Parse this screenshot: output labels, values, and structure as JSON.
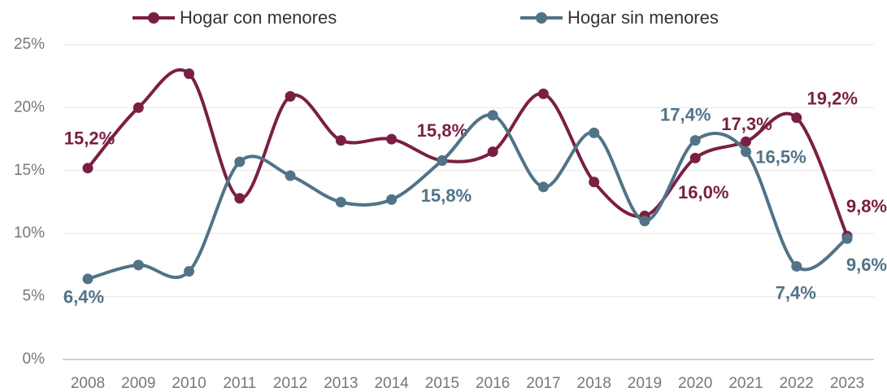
{
  "chart_data": {
    "type": "line",
    "categories": [
      "2008",
      "2009",
      "2010",
      "2011",
      "2012",
      "2013",
      "2014",
      "2015",
      "2016",
      "2017",
      "2018",
      "2019",
      "2020",
      "2021",
      "2022",
      "2023"
    ],
    "series": [
      {
        "name": "Hogar con menores",
        "color": "#7a1f44",
        "values": [
          15.2,
          20.0,
          22.7,
          12.8,
          20.9,
          17.4,
          17.5,
          15.8,
          16.5,
          21.1,
          14.1,
          11.4,
          16.0,
          17.3,
          19.2,
          9.8
        ],
        "value_labels": [
          "15,2%",
          null,
          null,
          null,
          null,
          null,
          null,
          "15,8%",
          null,
          null,
          null,
          null,
          "16,0%",
          "17,3%",
          "19,2%",
          "9,8%"
        ]
      },
      {
        "name": "Hogar sin menores",
        "color": "#517387",
        "values": [
          6.4,
          7.5,
          7.0,
          15.7,
          14.6,
          12.5,
          12.7,
          15.8,
          19.4,
          13.7,
          18.0,
          11.0,
          17.4,
          16.5,
          7.4,
          9.6
        ],
        "value_labels": [
          "6,4%",
          null,
          null,
          null,
          null,
          null,
          null,
          "15,8%",
          null,
          null,
          null,
          null,
          "17,4%",
          "16,5%",
          "7,4%",
          "9,6%"
        ]
      }
    ],
    "ylim": [
      0,
      25
    ],
    "yticks": [
      {
        "value": 0,
        "label": "0%"
      },
      {
        "value": 5,
        "label": "5%"
      },
      {
        "value": 10,
        "label": "10%"
      },
      {
        "value": 15,
        "label": "15%"
      },
      {
        "value": 20,
        "label": "20%"
      },
      {
        "value": 25,
        "label": "25%"
      }
    ],
    "grid": true,
    "legend": "top"
  }
}
